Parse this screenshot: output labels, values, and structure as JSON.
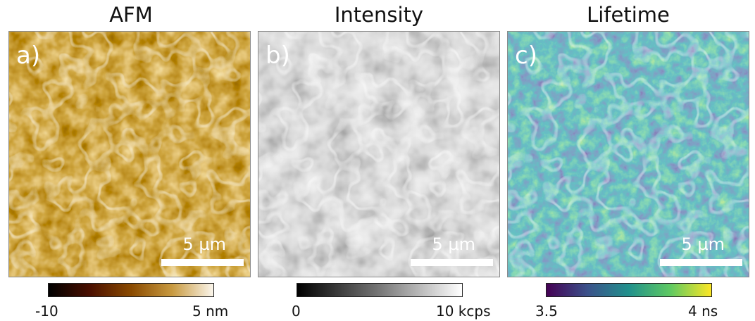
{
  "panels": [
    {
      "title": "AFM",
      "letter": "a)",
      "scale_label": "5 µm",
      "colorbar": {
        "min": "-10",
        "max": "5 nm",
        "colors": [
          "#000000",
          "#4a0f00",
          "#8a4a00",
          "#c89a40",
          "#fbf6ec"
        ]
      }
    },
    {
      "title": "Intensity",
      "letter": "b)",
      "scale_label": "5 µm",
      "colorbar": {
        "min": "0",
        "max": "10 kcps",
        "colors": [
          "#000000",
          "#777777",
          "#ffffff"
        ]
      }
    },
    {
      "title": "Lifetime",
      "letter": "c)",
      "scale_label": "5 µm",
      "colorbar": {
        "min": "3.5",
        "max": "4 ns",
        "colors": [
          "#440154",
          "#3b528b",
          "#21918c",
          "#5ec962",
          "#fde725"
        ]
      }
    }
  ]
}
